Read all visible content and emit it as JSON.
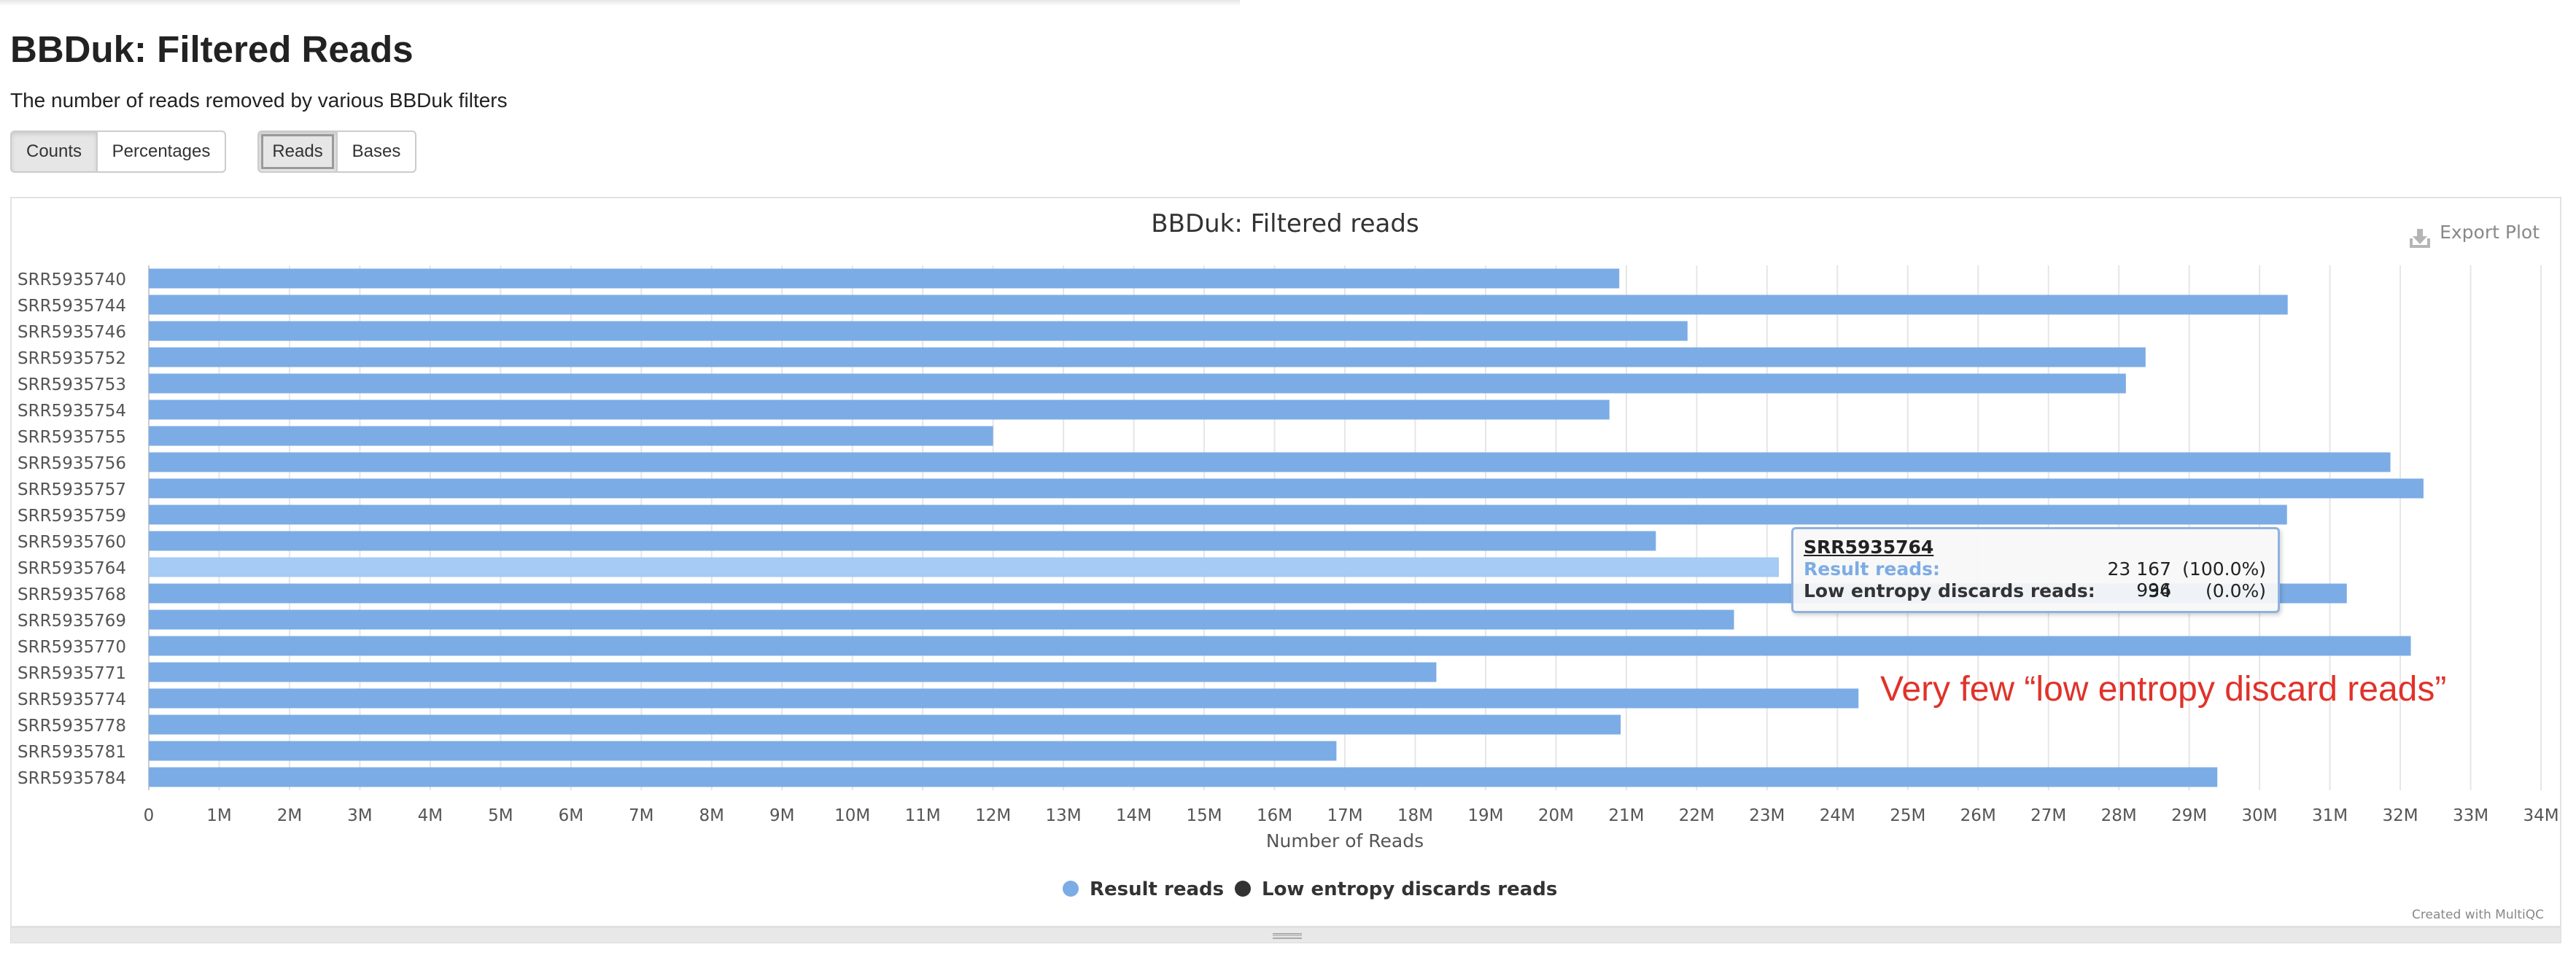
{
  "page": {
    "title": "BBDuk: Filtered Reads",
    "description": "The number of reads removed by various BBDuk filters"
  },
  "controls": {
    "group1": [
      {
        "label": "Counts",
        "active": true
      },
      {
        "label": "Percentages",
        "active": false
      }
    ],
    "group2": [
      {
        "label": "Reads",
        "active": true
      },
      {
        "label": "Bases",
        "active": false
      }
    ]
  },
  "export_label": "Export Plot",
  "credit": "Created with MultiQC",
  "annotation": "Very few “low entropy discard reads”",
  "colors": {
    "result": "#7cace5",
    "result_highlight": "#a6cbf4",
    "low_entropy": "#333333",
    "annotation": "#e0322a",
    "grid": "#e6e6e6"
  },
  "tooltip": {
    "sample": "SRR5935764",
    "rows": [
      {
        "name": "Result reads:",
        "value": "23 167 996",
        "pct": "(100.0%)",
        "color": "#7cace5"
      },
      {
        "name": "Low entropy discards reads:",
        "value": "34",
        "pct": "(0.0%)",
        "color": "#333333"
      }
    ]
  },
  "chart_data": {
    "type": "bar",
    "orientation": "horizontal",
    "stacked": true,
    "title": "BBDuk: Filtered reads",
    "xlabel": "Number of Reads",
    "ylabel": "",
    "xlim": [
      0,
      34000000
    ],
    "x_ticks": [
      "0",
      "1M",
      "2M",
      "3M",
      "4M",
      "5M",
      "6M",
      "7M",
      "8M",
      "9M",
      "10M",
      "11M",
      "12M",
      "13M",
      "14M",
      "15M",
      "16M",
      "17M",
      "18M",
      "19M",
      "20M",
      "21M",
      "22M",
      "23M",
      "24M",
      "25M",
      "26M",
      "27M",
      "28M",
      "29M",
      "30M",
      "31M",
      "32M",
      "33M",
      "34M"
    ],
    "grid": true,
    "legend_position": "bottom-center",
    "highlighted_category": "SRR5935764",
    "categories": [
      "SRR5935740",
      "SRR5935744",
      "SRR5935746",
      "SRR5935752",
      "SRR5935753",
      "SRR5935754",
      "SRR5935755",
      "SRR5935756",
      "SRR5935757",
      "SRR5935759",
      "SRR5935760",
      "SRR5935764",
      "SRR5935768",
      "SRR5935769",
      "SRR5935770",
      "SRR5935771",
      "SRR5935774",
      "SRR5935778",
      "SRR5935781",
      "SRR5935784"
    ],
    "series": [
      {
        "name": "Result reads",
        "color": "#7cace5",
        "values": [
          20900000,
          30400000,
          21870000,
          28380000,
          28100000,
          20760000,
          12000000,
          31860000,
          32330000,
          30390000,
          21420000,
          23167996,
          31240000,
          22530000,
          32150000,
          18300000,
          24300000,
          20920000,
          16880000,
          29400000
        ]
      },
      {
        "name": "Low entropy discards reads",
        "color": "#333333",
        "values": [
          30,
          30,
          30,
          30,
          30,
          30,
          20,
          30,
          30,
          30,
          30,
          34,
          30,
          30,
          30,
          20,
          30,
          30,
          20,
          30
        ]
      }
    ]
  }
}
